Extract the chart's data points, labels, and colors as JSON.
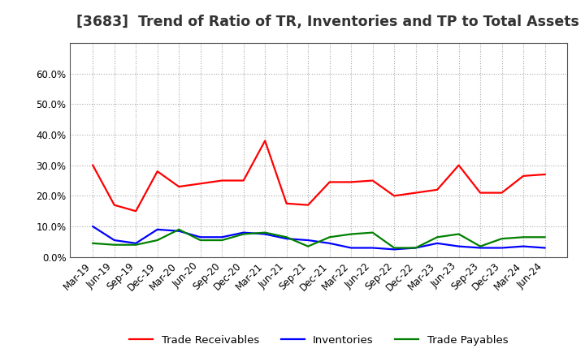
{
  "title": "[3683]  Trend of Ratio of TR, Inventories and TP to Total Assets",
  "x_labels": [
    "Mar-19",
    "Jun-19",
    "Sep-19",
    "Dec-19",
    "Mar-20",
    "Jun-20",
    "Sep-20",
    "Dec-20",
    "Mar-21",
    "Jun-21",
    "Sep-21",
    "Dec-21",
    "Mar-22",
    "Jun-22",
    "Sep-22",
    "Dec-22",
    "Mar-23",
    "Jun-23",
    "Sep-23",
    "Dec-23",
    "Mar-24",
    "Jun-24"
  ],
  "trade_receivables": [
    0.3,
    0.17,
    0.15,
    0.28,
    0.23,
    0.24,
    0.25,
    0.25,
    0.38,
    0.175,
    0.17,
    0.245,
    0.245,
    0.25,
    0.2,
    0.21,
    0.22,
    0.3,
    0.21,
    0.21,
    0.265,
    0.27
  ],
  "inventories": [
    0.1,
    0.055,
    0.045,
    0.09,
    0.085,
    0.065,
    0.065,
    0.08,
    0.075,
    0.06,
    0.055,
    0.045,
    0.03,
    0.03,
    0.025,
    0.03,
    0.045,
    0.035,
    0.03,
    0.03,
    0.035,
    0.03
  ],
  "trade_payables": [
    0.045,
    0.04,
    0.04,
    0.055,
    0.09,
    0.055,
    0.055,
    0.075,
    0.08,
    0.065,
    0.035,
    0.065,
    0.075,
    0.08,
    0.03,
    0.03,
    0.065,
    0.075,
    0.035,
    0.06,
    0.065,
    0.065
  ],
  "tr_color": "#ff0000",
  "inv_color": "#0000ff",
  "tp_color": "#008000",
  "background_color": "#ffffff",
  "grid_color": "#aaaaaa",
  "ylim": [
    0.0,
    0.7
  ],
  "yticks": [
    0.0,
    0.1,
    0.2,
    0.3,
    0.4,
    0.5,
    0.6
  ],
  "legend_labels": [
    "Trade Receivables",
    "Inventories",
    "Trade Payables"
  ],
  "title_fontsize": 12.5,
  "axis_fontsize": 8.5,
  "legend_fontsize": 9.5
}
